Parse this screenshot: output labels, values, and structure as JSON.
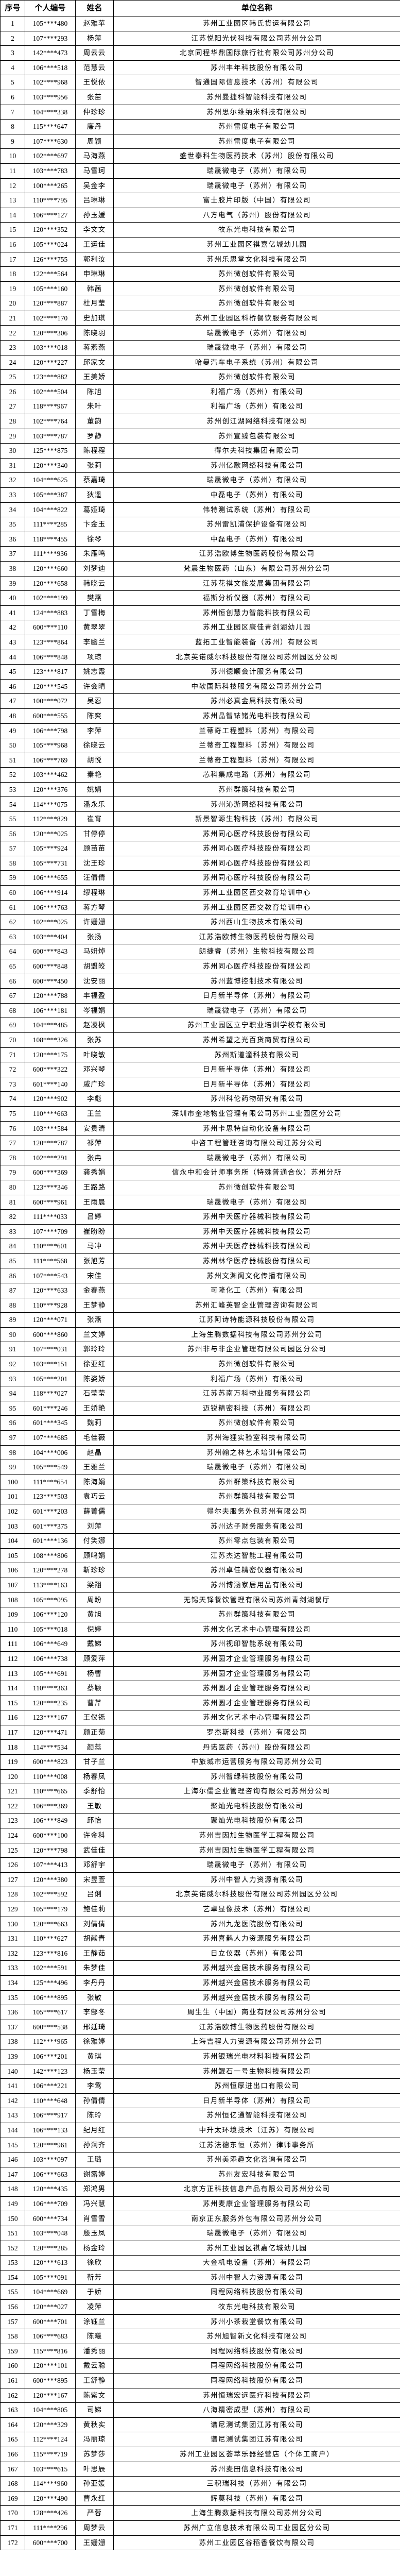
{
  "headers": [
    "序号",
    "个人编号",
    "姓名",
    "单位名称"
  ],
  "rows": [
    [
      "1",
      "105****480",
      "赵雅苹",
      "苏州工业园区韩氏货运有限公司"
    ],
    [
      "2",
      "107****293",
      "杨萍",
      "江苏悦阳光伏科技有限公司苏州分公司"
    ],
    [
      "3",
      "142****473",
      "周云云",
      "北京同程华鼎国际旅行社有限公司苏州分公司"
    ],
    [
      "4",
      "106****518",
      "范慧云",
      "苏州丰年科技股份有限公司"
    ],
    [
      "5",
      "102****968",
      "王悦依",
      "智通国际信息技术（苏州）有限公司"
    ],
    [
      "6",
      "103****956",
      "张苗",
      "苏州曼捷科智能科技有限公司"
    ],
    [
      "7",
      "104****338",
      "仲珍珍",
      "苏州思尔维纳米科技有限公司"
    ],
    [
      "8",
      "115****647",
      "廉丹",
      "苏州雷度电子有限公司"
    ],
    [
      "9",
      "107****630",
      "周颖",
      "苏州雷度电子有限公司"
    ],
    [
      "10",
      "102****697",
      "马海燕",
      "盛世泰科生物医药技术（苏州）股份有限公司"
    ],
    [
      "11",
      "103****783",
      "马雪珂",
      "瑞晟微电子（苏州）有限公司"
    ],
    [
      "12",
      "100****265",
      "吴金李",
      "瑞晟微电子（苏州）有限公司"
    ],
    [
      "13",
      "110****795",
      "吕琳琳",
      "富士胶片印版（中国）有限公司"
    ],
    [
      "14",
      "106****127",
      "孙玉媛",
      "八方电气（苏州）股份有限公司"
    ],
    [
      "15",
      "120****352",
      "李文文",
      "牧东光电科技有限公司"
    ],
    [
      "16",
      "105****024",
      "王运佳",
      "苏州工业园区祺嘉亿城幼儿园"
    ],
    [
      "17",
      "126****755",
      "郭利汝",
      "苏州乐思堂文化科技有限公司"
    ],
    [
      "18",
      "122****564",
      "申琳琳",
      "苏州微创软件有限公司"
    ],
    [
      "19",
      "105****160",
      "韩茜",
      "苏州微创软件有限公司"
    ],
    [
      "20",
      "120****887",
      "杜月莹",
      "苏州微创软件有限公司"
    ],
    [
      "21",
      "102****170",
      "史加琪",
      "苏州工业园区科桥餐饮服务有限公司"
    ],
    [
      "22",
      "120****306",
      "陈晓羽",
      "瑞晟微电子（苏州）有限公司"
    ],
    [
      "23",
      "103****018",
      "蒋燕燕",
      "瑞晟微电子（苏州）有限公司"
    ],
    [
      "24",
      "120****227",
      "邱家文",
      "哈曼汽车电子系统（苏州）有限公司"
    ],
    [
      "25",
      "123****882",
      "王美娇",
      "苏州微创软件有限公司"
    ],
    [
      "26",
      "102****504",
      "陈旭",
      "利福广场（苏州）有限公司"
    ],
    [
      "27",
      "118****967",
      "朱叶",
      "利福广场（苏州）有限公司"
    ],
    [
      "28",
      "102****764",
      "董韵",
      "苏州创江湖网络科技有限公司"
    ],
    [
      "29",
      "103****787",
      "罗静",
      "苏州宣臻包装有限公司"
    ],
    [
      "30",
      "125****875",
      "陈程程",
      "得尔夫科技集团有限公司"
    ],
    [
      "31",
      "120****340",
      "张莉",
      "苏州亿歌网络科技有限公司"
    ],
    [
      "32",
      "104****625",
      "蔡嘉琦",
      "瑞晟微电子（苏州）有限公司"
    ],
    [
      "33",
      "105****387",
      "狄遥",
      "中磊电子（苏州）有限公司"
    ],
    [
      "34",
      "104****822",
      "葛娅琦",
      "伟特测试系统（苏州）有限公司"
    ],
    [
      "35",
      "111****285",
      "卞金玉",
      "苏州雷凯浦保护设备有限公司"
    ],
    [
      "36",
      "118****455",
      "徐琴",
      "中磊电子（苏州）有限公司"
    ],
    [
      "37",
      "111****936",
      "朱雁鸣",
      "江苏浩欧博生物医药股份有限公司"
    ],
    [
      "38",
      "120****660",
      "刘梦迪",
      "梵晨生物医药（山东）有限公司苏州分公司"
    ],
    [
      "39",
      "120****658",
      "韩晓云",
      "江苏花祺文旅发展集团有限公司"
    ],
    [
      "40",
      "102****199",
      "樊燕",
      "福斯分析仪器（苏州）有限公司"
    ],
    [
      "41",
      "124****883",
      "丁雪梅",
      "苏州恒创慧力智能科技有限公司"
    ],
    [
      "42",
      "600****110",
      "黄翠翠",
      "苏州工业园区康佳青剑湖幼儿园"
    ],
    [
      "43",
      "123****864",
      "李幽兰",
      "蓝拓工业智能装备（苏州）有限公司"
    ],
    [
      "44",
      "106****848",
      "项琼",
      "北京英诺威尔科技股份有限公司苏州园区分公司"
    ],
    [
      "45",
      "123****817",
      "姚志霞",
      "苏州德顺会计服务有限公司"
    ],
    [
      "46",
      "120****545",
      "许会晴",
      "中软国际科技服务有限公司苏州分公司"
    ],
    [
      "47",
      "100****072",
      "吴忍",
      "苏州必真金属科技有限公司"
    ],
    [
      "48",
      "600****555",
      "陈爽",
      "苏州晶智铱锗光电科技有限公司"
    ],
    [
      "49",
      "106****798",
      "李萍",
      "兰蒂奇工程塑料（苏州）有限公司"
    ],
    [
      "50",
      "105****968",
      "徐晓云",
      "兰蒂奇工程塑料（苏州）有限公司"
    ],
    [
      "51",
      "106****769",
      "胡悦",
      "兰蒂奇工程塑料（苏州）有限公司"
    ],
    [
      "52",
      "103****462",
      "秦艳",
      "芯科集成电路（苏州）有限公司"
    ],
    [
      "53",
      "120****376",
      "姚娟",
      "苏州群策科技有限公司"
    ],
    [
      "54",
      "114****075",
      "潘永乐",
      "苏州沁游网络科技有限公司"
    ],
    [
      "55",
      "112****829",
      "崔宵",
      "新景智源生物科技（苏州）有限公司"
    ],
    [
      "56",
      "120****025",
      "甘停停",
      "苏州同心医疗科技股份有限公司"
    ],
    [
      "57",
      "105****924",
      "顾苗苗",
      "苏州同心医疗科技股份有限公司"
    ],
    [
      "58",
      "105****731",
      "沈王珍",
      "苏州同心医疗科技股份有限公司"
    ],
    [
      "59",
      "106****655",
      "汪倩倩",
      "苏州同心医疗科技股份有限公司"
    ],
    [
      "60",
      "106****914",
      "缪程琳",
      "苏州工业园区西交教育培训中心"
    ],
    [
      "61",
      "106****763",
      "蒋方琴",
      "苏州工业园区西交教育培训中心"
    ],
    [
      "62",
      "102****025",
      "许姗姗",
      "苏州西山生物技术有限公司"
    ],
    [
      "63",
      "103****404",
      "张扬",
      "江苏浩欧博生物医药股份有限公司"
    ],
    [
      "64",
      "600****843",
      "马妍焯",
      "朗捷睿（苏州）生物科技有限公司"
    ],
    [
      "65",
      "600****848",
      "胡盟皎",
      "苏州同心医疗科技股份有限公司"
    ],
    [
      "66",
      "600****450",
      "沈安丽",
      "苏州蓝博控制技术有限公司"
    ],
    [
      "67",
      "120****788",
      "丰福盈",
      "日月新半导体（苏州）有限公司"
    ],
    [
      "68",
      "106****181",
      "岑福娟",
      "瑞晟微电子（苏州）有限公司"
    ],
    [
      "69",
      "104****485",
      "赵凌枫",
      "苏州工业园区立宁职业培训学校有限公司"
    ],
    [
      "70",
      "108****326",
      "张苏",
      "苏州希望之光百货商贸有限公司"
    ],
    [
      "71",
      "120****175",
      "叶晓敏",
      "苏州斯道潼科技有限公司"
    ],
    [
      "72",
      "600****322",
      "邓兴琴",
      "日月新半导体（苏州）有限公司"
    ],
    [
      "73",
      "601****140",
      "戚广珍",
      "日月新半导体（苏州）有限公司"
    ],
    [
      "74",
      "120****902",
      "李彪",
      "苏州科伦药物研究有限公司"
    ],
    [
      "75",
      "110****663",
      "王兰",
      "深圳市金地物业管理有限公司苏州工业园区分公司"
    ],
    [
      "76",
      "103****584",
      "安贵清",
      "苏州卡思特自动化设备有限公司"
    ],
    [
      "77",
      "120****787",
      "祁萍",
      "中咨工程管理咨询有限公司江苏分公司"
    ],
    [
      "78",
      "102****291",
      "张冉",
      "瑞晟微电子（苏州）有限公司"
    ],
    [
      "79",
      "600****369",
      "龚秀娟",
      "信永中和会计师事务所（特殊普通合伙）苏州分所"
    ],
    [
      "80",
      "123****346",
      "王路路",
      "苏州微创软件有限公司"
    ],
    [
      "81",
      "600****961",
      "王雨晨",
      "瑞晟微电子（苏州）有限公司"
    ],
    [
      "82",
      "111****033",
      "吕婷",
      "苏州中天医疗器械科技有限公司"
    ],
    [
      "83",
      "107****709",
      "崔盼盼",
      "苏州中天医疗器械科技有限公司"
    ],
    [
      "84",
      "110****601",
      "马冲",
      "苏州中天医疗器械科技有限公司"
    ],
    [
      "85",
      "111****568",
      "张旭芳",
      "苏州林华医疗器械股份有限公司"
    ],
    [
      "86",
      "107****543",
      "宋佳",
      "苏州文渊阁文化传播有限公司"
    ],
    [
      "87",
      "120****633",
      "金春燕",
      "可隆化工（苏州）有限公司"
    ],
    [
      "88",
      "110****928",
      "王梦静",
      "苏州汇峰英智企业管理咨询有限公司"
    ],
    [
      "89",
      "120****071",
      "张燕",
      "江苏阿诗特能源科技股份有限公司"
    ],
    [
      "90",
      "600****860",
      "兰文婷",
      "上海生腾数据科技有限公司苏州分公司"
    ],
    [
      "91",
      "107****031",
      "郭玲玲",
      "苏州非与非企业管理有限公司园区分公司"
    ],
    [
      "92",
      "103****151",
      "徐亚红",
      "苏州微创软件有限公司"
    ],
    [
      "93",
      "105****201",
      "陈姿娇",
      "利福广场（苏州）有限公司"
    ],
    [
      "94",
      "118****027",
      "石莹莹",
      "江苏苏南万科物业服务有限公司"
    ],
    [
      "95",
      "601****246",
      "王娇艳",
      "迈锐精密科技（苏州）有限公司"
    ],
    [
      "96",
      "601****345",
      "魏莉",
      "苏州微创软件有限公司"
    ],
    [
      "97",
      "107****685",
      "毛佳薇",
      "苏州海狸实验室科技有限公司"
    ],
    [
      "98",
      "104****006",
      "赵晶",
      "苏州翰之林艺术培训有限公司"
    ],
    [
      "99",
      "105****549",
      "王雅兰",
      "瑞晟微电子（苏州）有限公司"
    ],
    [
      "100",
      "111****654",
      "陈海娟",
      "苏州群策科技有限公司"
    ],
    [
      "101",
      "123****503",
      "袁巧云",
      "苏州群策科技有限公司"
    ],
    [
      "102",
      "601****203",
      "薛菁儒",
      "得尔夫服务外包苏州有限公司"
    ],
    [
      "103",
      "601****375",
      "刘萍",
      "苏州达子财务服务有限公司"
    ],
    [
      "104",
      "601****136",
      "付笑娜",
      "苏州零点包装有限公司"
    ],
    [
      "105",
      "108****806",
      "顾鸣娟",
      "江苏杰达智能工程有限公司"
    ],
    [
      "106",
      "120****278",
      "靳珍珍",
      "苏州卓佳精密仪器有限公司"
    ],
    [
      "107",
      "113****163",
      "梁翔",
      "苏州博涵家居用品有限公司"
    ],
    [
      "108",
      "105****095",
      "周盼",
      "无锡天铎餐饮管理有限公司苏州青剑湖餐厅"
    ],
    [
      "109",
      "106****120",
      "黄旭",
      "苏州群策科技有限公司"
    ],
    [
      "110",
      "105****018",
      "倪婷",
      "苏州文化艺术中心管理有限公司"
    ],
    [
      "111",
      "106****649",
      "戴娣",
      "苏州视印智能系统有限公司"
    ],
    [
      "112",
      "106****738",
      "顾爱萍",
      "苏州圆才企业管理服务有限公司"
    ],
    [
      "113",
      "105****691",
      "杨曹",
      "苏州圆才企业管理服务有限公司"
    ],
    [
      "114",
      "110****363",
      "蔡颖",
      "苏州圆才企业管理服务有限公司"
    ],
    [
      "115",
      "120****235",
      "曹芹",
      "苏州圆才企业管理服务有限公司"
    ],
    [
      "116",
      "123****167",
      "王仪铄",
      "苏州文化艺术中心管理有限公司"
    ],
    [
      "117",
      "120****471",
      "颜正菊",
      "罗杰斯科技（苏州）有限公司"
    ],
    [
      "118",
      "114****534",
      "颜蕊",
      "丹诺医药（苏州）股份有限公司"
    ],
    [
      "119",
      "600****823",
      "甘子兰",
      "中旅城市运营服务有限公司苏州分公司"
    ],
    [
      "120",
      "110****008",
      "杨春凤",
      "苏州智绿科技股份有限公司"
    ],
    [
      "121",
      "110****665",
      "季舒怡",
      "上海尔儒企业管理咨询有限公司苏州分公司"
    ],
    [
      "122",
      "106****369",
      "王敏",
      "聚灿光电科技股份有限公司"
    ],
    [
      "123",
      "106****849",
      "邱怡",
      "聚灿光电科技股份有限公司"
    ],
    [
      "124",
      "600****100",
      "许金科",
      "苏州吉因加生物医学工程有限公司"
    ],
    [
      "125",
      "120****798",
      "武佳佳",
      "苏州吉因加生物医学工程有限公司"
    ],
    [
      "126",
      "107****413",
      "邓舒宇",
      "瑞晟微电子（苏州）有限公司"
    ],
    [
      "127",
      "120****380",
      "宋昱萱",
      "苏州中智人力资源有限公司"
    ],
    [
      "128",
      "102****592",
      "吕俐",
      "北京英诺威尔科技股份有限公司苏州园区分公司"
    ],
    [
      "129",
      "105****179",
      "鲍佳莉",
      "艺卓显像技术（苏州）有限公司"
    ],
    [
      "130",
      "120****663",
      "刘倩倩",
      "苏州九龙医院股份有限公司"
    ],
    [
      "131",
      "110****627",
      "胡献青",
      "苏州喜鹊人力资源服务有限公司"
    ],
    [
      "132",
      "123****816",
      "王静茹",
      "日立仪器（苏州）有限公司"
    ],
    [
      "133",
      "102****591",
      "朱梦佳",
      "苏州越兴金居技术服务有限公司"
    ],
    [
      "134",
      "125****496",
      "李丹丹",
      "苏州越兴金居技术服务有限公司"
    ],
    [
      "135",
      "106****895",
      "张敏",
      "苏州越兴金居技术服务有限公司"
    ],
    [
      "136",
      "105****617",
      "李郜冬",
      "周生生（中国）商业有限公司苏州分公司"
    ],
    [
      "137",
      "600****538",
      "邢延琦",
      "江苏浩欧博生物医药股份有限公司"
    ],
    [
      "138",
      "112****965",
      "徐雅婷",
      "上海吉程人力资源有限公司苏州分公司"
    ],
    [
      "139",
      "106****201",
      "黄琪",
      "苏州银瑞光电材料科技有限公司"
    ],
    [
      "140",
      "142****123",
      "杨玉莹",
      "苏州鲲石一号生物科技有限公司"
    ],
    [
      "141",
      "106****221",
      "李鸳",
      "苏州恒厚进出口有限公司"
    ],
    [
      "142",
      "110****648",
      "孙倩倩",
      "日月新半导体（苏州）有限公司"
    ],
    [
      "143",
      "106****917",
      "陈玲",
      "苏州恒亿通智能科技有限公司"
    ],
    [
      "144",
      "106****133",
      "纪月红",
      "中升太环境技术（江苏）有限公司"
    ],
    [
      "145",
      "120****961",
      "孙澜齐",
      "江苏法德东恒（苏州）律师事务所"
    ],
    [
      "146",
      "103****097",
      "王璐",
      "苏州美添趣文化咨询有限公司"
    ],
    [
      "147",
      "106****663",
      "谢露婷",
      "苏州友宏科技有限公司"
    ],
    [
      "148",
      "120****435",
      "郑鸿男",
      "北京方正科技信息产品有限公司苏州分公司"
    ],
    [
      "149",
      "106****709",
      "冯兴慧",
      "苏州麦康企业管理服务有限公司"
    ],
    [
      "150",
      "600****734",
      "肖雪雪",
      "南京正东服务外包有限公司苏州分公司"
    ],
    [
      "151",
      "103****048",
      "殷玉凤",
      "瑞晟微电子（苏州）有限公司"
    ],
    [
      "152",
      "120****285",
      "杨金玲",
      "苏州工业园区祺嘉亿城幼儿园"
    ],
    [
      "153",
      "120****613",
      "徐欣",
      "大金机电设备（苏州）有限公司"
    ],
    [
      "154",
      "105****091",
      "靳芳",
      "苏州中智人力资源有限公司"
    ],
    [
      "155",
      "104****669",
      "于娇",
      "同程网络科技股份有限公司"
    ],
    [
      "156",
      "120****027",
      "凌萍",
      "牧东光电科技有限公司"
    ],
    [
      "157",
      "600****701",
      "涂钰兰",
      "苏州小茶栽堂餐饮有限公司"
    ],
    [
      "158",
      "106****683",
      "陈曦",
      "苏州旭智新文化科技有限公司"
    ],
    [
      "159",
      "115****816",
      "潘秀丽",
      "同程网络科技股份有限公司"
    ],
    [
      "160",
      "120****101",
      "戴云聪",
      "同程网络科技股份有限公司"
    ],
    [
      "161",
      "600****895",
      "王舒静",
      "同程网络科技股份有限公司"
    ],
    [
      "162",
      "120****167",
      "陈紫文",
      "苏州恒瑞宏远医疗科技有限公司"
    ],
    [
      "163",
      "104****805",
      "司娣",
      "八海精密成型（苏州）有限公司"
    ],
    [
      "164",
      "120****329",
      "黄秋实",
      "谱尼测试集团江苏有限公司"
    ],
    [
      "165",
      "112****124",
      "冯丽琼",
      "谱尼测试集团江苏有限公司"
    ],
    [
      "166",
      "115****719",
      "苏梦莎",
      "苏州工业园区荟萃乐器经营店（个体工商户）"
    ],
    [
      "167",
      "103****615",
      "叶思辰",
      "苏州麦田信息科技有限公司"
    ],
    [
      "168",
      "114****960",
      "孙亚媛",
      "三积瑞科技（苏州）有限公司"
    ],
    [
      "169",
      "120****490",
      "曹永红",
      "辉莫科技（苏州）有限公司"
    ],
    [
      "170",
      "128****426",
      "严蓉",
      "上海生腾数据科技有限公司苏州分公司"
    ],
    [
      "171",
      "111****296",
      "周梦云",
      "苏州广立信息技术有限公司工业园区分公司"
    ],
    [
      "172",
      "600****700",
      "王姗姗",
      "苏州工业园区谷稻香餐饮有限公司"
    ]
  ]
}
